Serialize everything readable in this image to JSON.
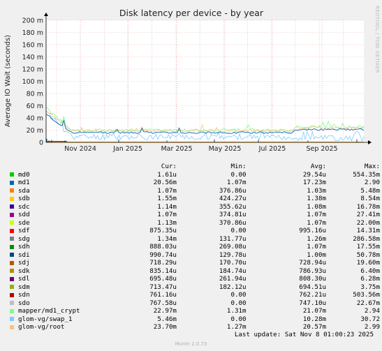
{
  "chart_data": {
    "type": "line",
    "title": "Disk latency per device - by year",
    "ylabel": "Average IO Wait (seconds)",
    "ylim": [
      0,
      200
    ],
    "y_unit": "m",
    "y_ticks": [
      "0",
      "20 m",
      "40 m",
      "60 m",
      "80 m",
      "100 m",
      "120 m",
      "140 m",
      "160 m",
      "180 m",
      "200 m"
    ],
    "x_tick_labels": [
      "Nov 2024",
      "Jan 2025",
      "Mar 2025",
      "May 2025",
      "Jul 2025",
      "Sep 2025"
    ],
    "grid": true,
    "legend_position": "bottom",
    "columns": [
      "Cur:",
      "Min:",
      "Avg:",
      "Max:"
    ],
    "series": [
      {
        "name": "md0",
        "color": "#00cc00",
        "cur": "1.61u",
        "min": "0.00",
        "avg": "29.54u",
        "max": "554.35m"
      },
      {
        "name": "md1",
        "color": "#0066b3",
        "cur": "20.56m",
        "min": "1.07m",
        "avg": "17.23m",
        "max": "2.90"
      },
      {
        "name": "sda",
        "color": "#ff8000",
        "cur": "1.07m",
        "min": "376.86u",
        "avg": "1.03m",
        "max": "5.48m"
      },
      {
        "name": "sdb",
        "color": "#ffcc00",
        "cur": "1.55m",
        "min": "424.27u",
        "avg": "1.38m",
        "max": "8.54m"
      },
      {
        "name": "sdc",
        "color": "#330099",
        "cur": "1.14m",
        "min": "355.62u",
        "avg": "1.08m",
        "max": "16.78m"
      },
      {
        "name": "sdd",
        "color": "#990099",
        "cur": "1.07m",
        "min": "374.81u",
        "avg": "1.07m",
        "max": "27.41m"
      },
      {
        "name": "sde",
        "color": "#ccff00",
        "cur": "1.13m",
        "min": "370.86u",
        "avg": "1.07m",
        "max": "22.00m"
      },
      {
        "name": "sdf",
        "color": "#ff0000",
        "cur": "875.35u",
        "min": "0.00",
        "avg": "995.16u",
        "max": "14.31m"
      },
      {
        "name": "sdg",
        "color": "#808080",
        "cur": "1.34m",
        "min": "131.77u",
        "avg": "1.26m",
        "max": "286.58m"
      },
      {
        "name": "sdh",
        "color": "#008f00",
        "cur": "888.03u",
        "min": "269.08u",
        "avg": "1.07m",
        "max": "17.55m"
      },
      {
        "name": "sdi",
        "color": "#00487d",
        "cur": "990.74u",
        "min": "129.78u",
        "avg": "1.00m",
        "max": "50.78m"
      },
      {
        "name": "sdj",
        "color": "#b35a00",
        "cur": "718.29u",
        "min": "170.70u",
        "avg": "728.94u",
        "max": "19.60m"
      },
      {
        "name": "sdk",
        "color": "#b38f00",
        "cur": "835.14u",
        "min": "184.74u",
        "avg": "786.93u",
        "max": "6.40m"
      },
      {
        "name": "sdl",
        "color": "#6b006b",
        "cur": "695.48u",
        "min": "261.94u",
        "avg": "808.30u",
        "max": "6.28m"
      },
      {
        "name": "sdm",
        "color": "#8fb300",
        "cur": "713.47u",
        "min": "182.12u",
        "avg": "694.51u",
        "max": "3.75m"
      },
      {
        "name": "sdn",
        "color": "#b30000",
        "cur": "761.16u",
        "min": "0.00",
        "avg": "762.21u",
        "max": "503.56m"
      },
      {
        "name": "sdo",
        "color": "#bebebe",
        "cur": "767.58u",
        "min": "0.00",
        "avg": "747.10u",
        "max": "22.67m"
      },
      {
        "name": "mapper/md1_crypt",
        "color": "#80ff80",
        "cur": "22.97m",
        "min": "1.31m",
        "avg": "21.07m",
        "max": "2.94"
      },
      {
        "name": "glom-vg/swap_1",
        "color": "#80c9ff",
        "cur": "5.46m",
        "min": "0.00",
        "avg": "10.28m",
        "max": "30.72"
      },
      {
        "name": "glom-vg/root",
        "color": "#ffc080",
        "cur": "23.70m",
        "min": "1.27m",
        "avg": "20.57m",
        "max": "2.99"
      }
    ]
  },
  "side_label": "RRDTOOL / TOBI OETIKER",
  "footer": "Last update: Sat Nov  8 01:00:23 2025",
  "munin_version": "Munin 2.0.73"
}
